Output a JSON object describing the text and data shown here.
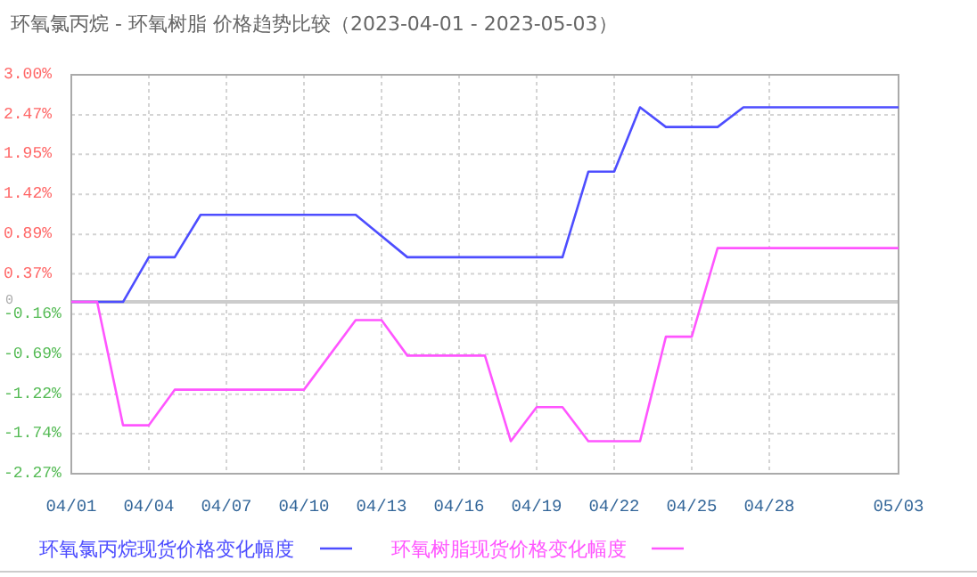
{
  "chart_data": {
    "type": "line",
    "title": "环氧氯丙烷 - 环氧树脂 价格趋势比较（2023-04-01 - 2023-05-03）",
    "xlim": [
      "2023-04-01",
      "2023-05-03"
    ],
    "xticks": [
      {
        "value": "2023-04-01",
        "label": "04/01"
      },
      {
        "value": "2023-04-04",
        "label": "04/04"
      },
      {
        "value": "2023-04-07",
        "label": "04/07"
      },
      {
        "value": "2023-04-10",
        "label": "04/10"
      },
      {
        "value": "2023-04-13",
        "label": "04/13"
      },
      {
        "value": "2023-04-16",
        "label": "04/16"
      },
      {
        "value": "2023-04-19",
        "label": "04/19"
      },
      {
        "value": "2023-04-22",
        "label": "04/22"
      },
      {
        "value": "2023-04-25",
        "label": "04/25"
      },
      {
        "value": "2023-04-28",
        "label": "04/28"
      },
      {
        "value": "2023-05-03",
        "label": "05/03"
      }
    ],
    "ylim": [
      -2.27,
      3.0
    ],
    "yticks": [
      {
        "value": 3.0,
        "label": "3.00%"
      },
      {
        "value": 2.47,
        "label": "2.47%"
      },
      {
        "value": 1.95,
        "label": "1.95%"
      },
      {
        "value": 1.42,
        "label": "1.42%"
      },
      {
        "value": 0.89,
        "label": "0.89%"
      },
      {
        "value": 0.37,
        "label": "0.37%"
      },
      {
        "value": 0,
        "label": "0"
      },
      {
        "value": -0.16,
        "label": "-0.16%"
      },
      {
        "value": -0.69,
        "label": "-0.69%"
      },
      {
        "value": -1.22,
        "label": "-1.22%"
      },
      {
        "value": -1.74,
        "label": "-1.74%"
      },
      {
        "value": -2.27,
        "label": "-2.27%"
      }
    ],
    "grid": true,
    "legend": "bottom",
    "line_style": "solid",
    "ref_lines": [
      {
        "axis": "y",
        "value": 0,
        "color": "#cccccc"
      }
    ],
    "series": [
      {
        "name": "环氧氯丙烷现货价格变化幅度",
        "color": "#4d4dff",
        "x": [
          "2023-04-01",
          "2023-04-03",
          "2023-04-04",
          "2023-04-05",
          "2023-04-06",
          "2023-04-12",
          "2023-04-14",
          "2023-04-20",
          "2023-04-21",
          "2023-04-22",
          "2023-04-23",
          "2023-04-24",
          "2023-04-26",
          "2023-04-27",
          "2023-05-03"
        ],
        "values": [
          0,
          0,
          0.59,
          0.59,
          1.15,
          1.15,
          0.59,
          0.59,
          1.72,
          1.72,
          2.57,
          2.31,
          2.31,
          2.57,
          2.57
        ]
      },
      {
        "name": "环氧树脂现货价格变化幅度",
        "color": "#ff55ff",
        "x": [
          "2023-04-01",
          "2023-04-02",
          "2023-04-03",
          "2023-04-04",
          "2023-04-05",
          "2023-04-10",
          "2023-04-12",
          "2023-04-13",
          "2023-04-14",
          "2023-04-17",
          "2023-04-18",
          "2023-04-19",
          "2023-04-20",
          "2023-04-21",
          "2023-04-23",
          "2023-04-24",
          "2023-04-25",
          "2023-04-26",
          "2023-05-03"
        ],
        "values": [
          0,
          0,
          -1.63,
          -1.63,
          -1.16,
          -1.16,
          -0.24,
          -0.24,
          -0.71,
          -0.71,
          -1.84,
          -1.39,
          -1.39,
          -1.84,
          -1.84,
          -0.46,
          -0.46,
          0.71,
          0.71
        ]
      }
    ]
  }
}
